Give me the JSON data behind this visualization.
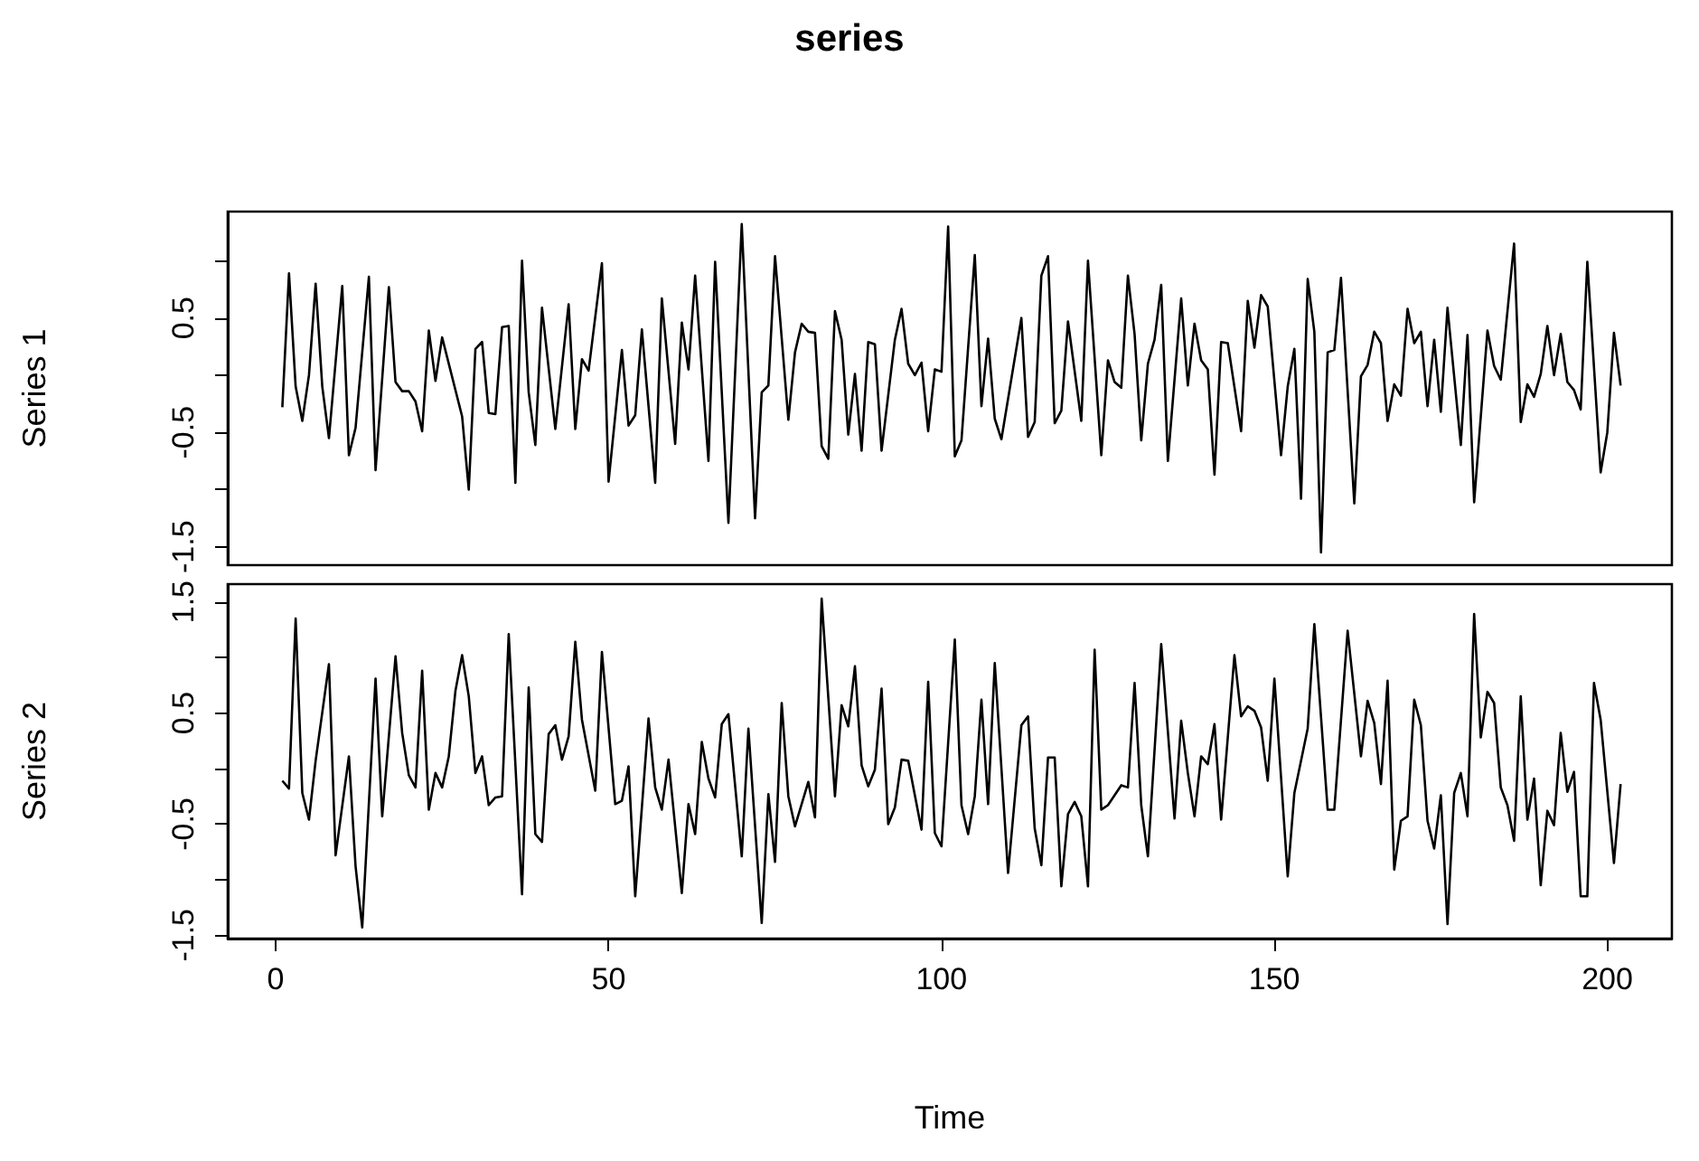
{
  "chart_data": [
    {
      "type": "line",
      "title": "series",
      "ylabel": "Series 1",
      "color": "#000000",
      "marker": "none",
      "grid": false,
      "tick_labels": "y",
      "x": [
        1,
        2,
        3,
        4,
        5,
        6,
        7,
        8,
        10,
        11,
        12,
        14,
        15,
        17,
        18,
        19,
        20,
        21,
        22,
        23,
        24,
        25,
        28,
        29,
        30,
        31,
        32,
        33,
        34,
        35,
        36,
        37,
        38,
        39,
        40,
        42,
        44,
        45,
        46,
        47,
        49,
        50,
        52,
        53,
        54,
        55,
        57,
        58,
        60,
        61,
        62,
        63,
        65,
        66,
        68,
        70,
        72,
        73,
        74,
        75,
        77,
        78,
        79,
        80,
        81,
        82,
        83,
        84,
        85,
        86,
        87,
        88,
        89,
        90,
        91,
        93,
        94,
        95,
        96,
        97,
        98,
        99,
        100,
        101,
        102,
        103,
        105,
        106,
        107,
        108,
        109,
        112,
        113,
        114,
        115,
        116,
        117,
        118,
        119,
        121,
        122,
        124,
        125,
        126,
        127,
        128,
        129,
        130,
        131,
        132,
        133,
        134,
        136,
        137,
        138,
        139,
        140,
        141,
        142,
        143,
        145,
        146,
        147,
        148,
        149,
        151,
        152,
        153,
        154,
        155,
        156,
        157,
        158,
        159,
        160,
        162,
        163,
        164,
        165,
        166,
        167,
        168,
        169,
        170,
        171,
        172,
        173,
        174,
        175,
        176,
        178,
        179,
        180,
        182,
        183,
        184,
        186,
        187,
        188,
        189,
        190,
        191,
        192,
        193,
        194,
        195,
        196,
        197,
        199,
        200,
        201,
        202
      ],
      "values": [
        -0.28,
        0.89,
        -0.1,
        -0.4,
        0,
        0.8,
        -0.1,
        -0.55,
        0.78,
        -0.7,
        -0.46,
        0.86,
        -0.83,
        0.77,
        -0.06,
        -0.14,
        -0.14,
        -0.23,
        -0.49,
        0.39,
        -0.05,
        0.33,
        -0.36,
        -1.0,
        0.23,
        0.29,
        -0.33,
        -0.34,
        0.42,
        0.43,
        -0.94,
        1.0,
        -0.15,
        -0.61,
        0.59,
        -0.47,
        0.62,
        -0.47,
        0.14,
        0.04,
        0.98,
        -0.93,
        0.22,
        -0.44,
        -0.35,
        0.4,
        -0.94,
        0.67,
        -0.6,
        0.46,
        0.05,
        0.87,
        -0.75,
        0.99,
        -1.29,
        1.32,
        -1.25,
        -0.15,
        -0.09,
        1.04,
        -0.39,
        0.2,
        0.45,
        0.38,
        0.37,
        -0.62,
        -0.73,
        0.56,
        0.31,
        -0.52,
        0.01,
        -0.66,
        0.29,
        0.27,
        -0.66,
        0.31,
        0.58,
        0.1,
        0,
        0.11,
        -0.49,
        0.05,
        0.03,
        1.3,
        -0.71,
        -0.57,
        1.05,
        -0.27,
        0.32,
        -0.38,
        -0.56,
        0.5,
        -0.54,
        -0.41,
        0.87,
        1.04,
        -0.42,
        -0.31,
        0.47,
        -0.4,
        1.0,
        -0.7,
        0.13,
        -0.06,
        -0.11,
        0.87,
        0.36,
        -0.57,
        0.1,
        0.31,
        0.79,
        -0.75,
        0.67,
        -0.09,
        0.45,
        0.13,
        0.05,
        -0.87,
        0.29,
        0.28,
        -0.49,
        0.65,
        0.24,
        0.7,
        0.6,
        -0.7,
        -0.1,
        0.23,
        -1.08,
        0.84,
        0.38,
        -1.55,
        0.2,
        0.22,
        0.85,
        -1.12,
        -0.01,
        0.09,
        0.38,
        0.28,
        -0.4,
        -0.08,
        -0.18,
        0.58,
        0.28,
        0.38,
        -0.27,
        0.31,
        -0.32,
        0.59,
        -0.61,
        0.35,
        -1.11,
        0.39,
        0.08,
        -0.04,
        1.15,
        -0.41,
        -0.08,
        -0.19,
        0.01,
        0.43,
        0,
        0.36,
        -0.06,
        -0.13,
        -0.3,
        0.99,
        -0.85,
        -0.5,
        0.37,
        -0.09
      ],
      "xlim": [
        -7.2,
        209.7
      ],
      "ylim": [
        -1.66,
        1.43
      ],
      "yticks": [
        -1.5,
        {
          "value": -1,
          "label": null
        },
        -0.5,
        {
          "value": 0,
          "label": null
        },
        0.5,
        {
          "value": 1,
          "label": null
        }
      ]
    },
    {
      "type": "line",
      "xlabel": "Time",
      "ylabel": "Series 2",
      "color": "#000000",
      "marker": "none",
      "grid": false,
      "x": [
        1,
        2,
        3,
        4,
        5,
        6,
        8,
        9,
        11,
        12,
        13,
        15,
        16,
        18,
        19,
        20,
        21,
        22,
        23,
        24,
        25,
        26,
        27,
        28,
        29,
        30,
        31,
        32,
        33,
        34,
        35,
        37,
        38,
        39,
        40,
        41,
        42,
        43,
        44,
        45,
        46,
        48,
        49,
        51,
        52,
        53,
        54,
        56,
        57,
        58,
        59,
        61,
        62,
        63,
        64,
        65,
        66,
        67,
        68,
        70,
        71,
        73,
        74,
        75,
        76,
        77,
        78,
        80,
        81,
        82,
        84,
        85,
        86,
        87,
        88,
        89,
        90,
        91,
        92,
        93,
        94,
        95,
        97,
        98,
        99,
        100,
        102,
        103,
        104,
        105,
        106,
        107,
        108,
        110,
        112,
        113,
        114,
        115,
        116,
        117,
        118,
        119,
        120,
        121,
        122,
        123,
        124,
        125,
        127,
        128,
        129,
        130,
        131,
        133,
        135,
        136,
        137,
        138,
        139,
        140,
        141,
        142,
        144,
        145,
        146,
        147,
        148,
        149,
        150,
        152,
        153,
        155,
        156,
        158,
        159,
        161,
        163,
        164,
        165,
        166,
        167,
        168,
        169,
        170,
        171,
        172,
        173,
        174,
        175,
        176,
        177,
        178,
        179,
        180,
        181,
        182,
        183,
        184,
        185,
        186,
        187,
        188,
        189,
        190,
        191,
        192,
        193,
        194,
        195,
        196,
        197,
        198,
        199,
        201,
        202
      ],
      "values": [
        -0.11,
        -0.18,
        1.35,
        -0.22,
        -0.46,
        0.07,
        0.94,
        -0.78,
        0.11,
        -0.88,
        -1.43,
        0.81,
        -0.43,
        1.01,
        0.32,
        -0.06,
        -0.17,
        0.88,
        -0.37,
        -0.04,
        -0.17,
        0.11,
        0.7,
        1.02,
        0.65,
        -0.04,
        0.11,
        -0.33,
        -0.26,
        -0.25,
        1.21,
        -1.13,
        0.73,
        -0.59,
        -0.66,
        0.31,
        0.39,
        0.08,
        0.29,
        1.14,
        0.44,
        -0.2,
        1.05,
        -0.32,
        -0.29,
        0.02,
        -1.15,
        0.45,
        -0.17,
        -0.37,
        0.08,
        -1.12,
        -0.32,
        -0.59,
        0.24,
        -0.09,
        -0.26,
        0.4,
        0.49,
        -0.79,
        0.36,
        -1.39,
        -0.23,
        -0.84,
        0.59,
        -0.25,
        -0.52,
        -0.12,
        -0.44,
        1.53,
        -0.25,
        0.57,
        0.38,
        0.92,
        0.03,
        -0.16,
        -0.01,
        0.72,
        -0.5,
        -0.35,
        0.08,
        0.07,
        -0.55,
        0.78,
        -0.58,
        -0.7,
        1.16,
        -0.33,
        -0.59,
        -0.25,
        0.62,
        -0.32,
        0.95,
        -0.94,
        0.39,
        0.47,
        -0.54,
        -0.87,
        0.1,
        0.1,
        -1.06,
        -0.41,
        -0.3,
        -0.43,
        -1.06,
        1.07,
        -0.37,
        -0.33,
        -0.15,
        -0.17,
        0.77,
        -0.33,
        -0.79,
        1.12,
        -0.45,
        0.43,
        -0.04,
        -0.43,
        0.11,
        0.04,
        0.4,
        -0.46,
        1.02,
        0.47,
        0.56,
        0.52,
        0.37,
        -0.11,
        0.81,
        -0.97,
        -0.22,
        0.36,
        1.3,
        -0.37,
        -0.37,
        1.24,
        0.11,
        0.61,
        0.41,
        -0.14,
        0.79,
        -0.91,
        -0.47,
        -0.43,
        0.62,
        0.39,
        -0.47,
        -0.72,
        -0.24,
        -1.4,
        -0.22,
        -0.04,
        -0.43,
        1.39,
        0.28,
        0.69,
        0.59,
        -0.17,
        -0.33,
        -0.65,
        0.65,
        -0.46,
        -0.09,
        -1.05,
        -0.38,
        -0.51,
        0.32,
        -0.21,
        -0.03,
        -1.15,
        -1.15,
        0.77,
        0.44,
        -0.85,
        -0.14
      ],
      "xlim": [
        -7.2,
        209.7
      ],
      "ylim": [
        -1.53,
        1.66
      ],
      "xticks": [
        0,
        50,
        100,
        150,
        200
      ],
      "yticks": [
        -1.5,
        {
          "value": -1,
          "label": null
        },
        -0.5,
        {
          "value": 0,
          "label": null
        },
        0.5,
        {
          "value": 1,
          "label": null
        },
        1.5
      ]
    }
  ]
}
